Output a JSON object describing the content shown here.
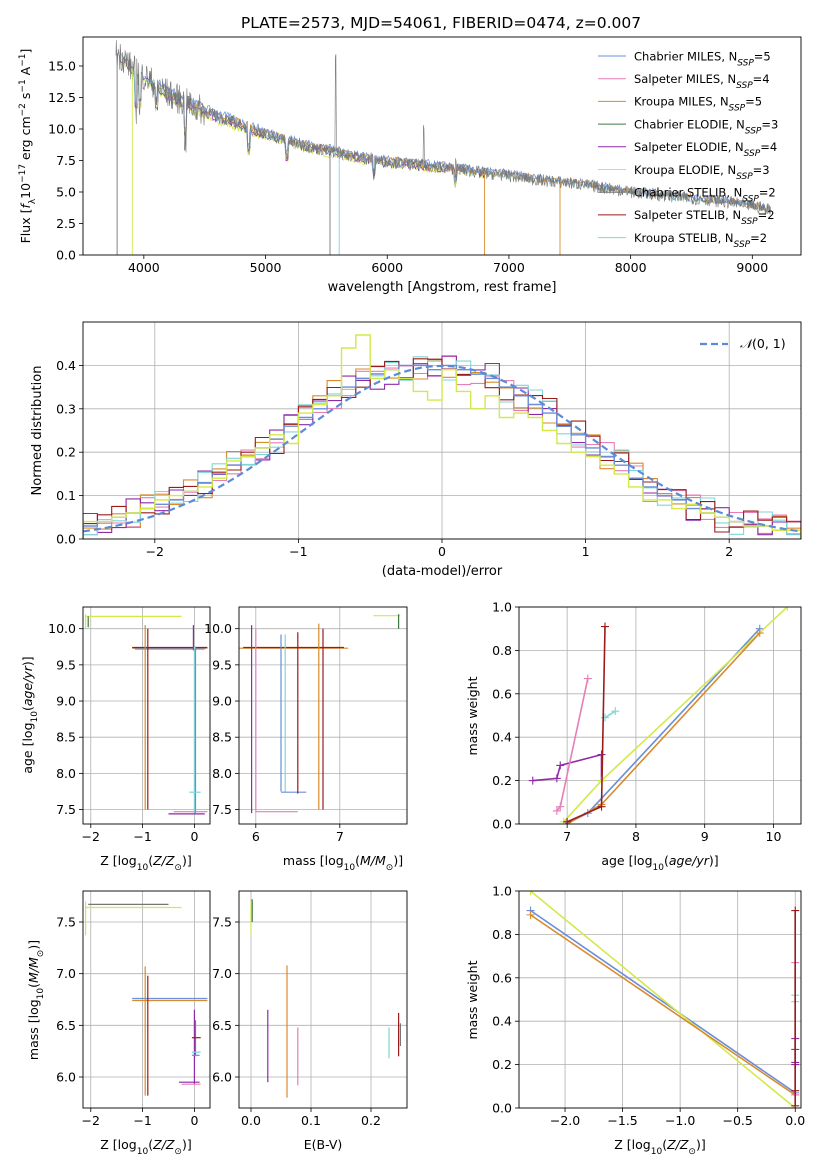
{
  "title": "PLATE=2573, MJD=54061, FIBERID=0474, z=0.007",
  "colors": {
    "Chabrier MILES": "#6a8fd8",
    "Salpeter MILES": "#e67fb6",
    "Kroupa MILES": "#d98a2c",
    "Chabrier ELODIE": "#3d7a3d",
    "Salpeter ELODIE": "#8e2aa8",
    "Kroupa ELODIE": "#d4e84a",
    "Chabrier STELIB": "#777777",
    "Salpeter STELIB": "#9b1b1b",
    "Kroupa STELIB": "#7fd6d9",
    "normal": "#5b8bd8"
  },
  "chart_data": [
    {
      "type": "line",
      "xlabel": "wavelength [Angstrom, rest frame]",
      "ylabel": "Flux [f$_\\lambda$10$^{-17}$ erg cm$^{-2}$ s$^{-1}$ A$^{-1}$]",
      "xlim": [
        3500,
        9400
      ],
      "ylim": [
        0,
        17.3
      ],
      "xticks": [
        4000,
        5000,
        6000,
        7000,
        8000,
        9000
      ],
      "yticks": [
        0.0,
        2.5,
        5.0,
        7.5,
        10.0,
        12.5,
        15.0
      ],
      "legend": [
        "Chabrier MILES, N_SSP=5",
        "Salpeter MILES, N_SSP=4",
        "Kroupa MILES, N_SSP=5",
        "Chabrier ELODIE, N_SSP=3",
        "Salpeter ELODIE, N_SSP=4",
        "Kroupa ELODIE, N_SSP=3",
        "Chabrier STELIB, N_SSP=2",
        "Salpeter STELIB, N_SSP=2",
        "Kroupa STELIB, N_SSP=2"
      ],
      "legend_position": "top-right",
      "series": [
        {
          "name": "data",
          "x": [
            3780,
            3850,
            3900,
            4000,
            4100,
            4200,
            4400,
            4600,
            4800,
            5000,
            5200,
            5400,
            5600,
            5800,
            6000,
            6200,
            6400,
            6600,
            6800,
            7000,
            7200,
            7400,
            7600,
            7800,
            8000,
            8200,
            8400,
            8600,
            8800,
            9000,
            9100
          ],
          "y": [
            16.0,
            15.5,
            14.8,
            14.2,
            13.5,
            12.8,
            11.8,
            11.0,
            10.3,
            9.6,
            9.0,
            8.5,
            8.1,
            7.7,
            7.4,
            7.2,
            7.0,
            6.8,
            6.5,
            6.3,
            6.0,
            5.8,
            5.6,
            5.3,
            5.0,
            4.8,
            4.6,
            4.4,
            4.2,
            3.9,
            3.7
          ]
        }
      ]
    },
    {
      "type": "bar",
      "xlabel": "(data-model)/error",
      "ylabel": "Normed distribution",
      "xlim": [
        -2.5,
        2.5
      ],
      "ylim": [
        0,
        0.5
      ],
      "xticks": [
        -2,
        -1,
        0,
        1,
        2
      ],
      "yticks": [
        0.0,
        0.1,
        0.2,
        0.3,
        0.4
      ],
      "legend": [
        "$\\mathcal{N}(0,1)$"
      ],
      "legend_position": "top-right",
      "bin_edges": [
        -2.5,
        -2.4,
        -2.3,
        -2.2,
        -2.1,
        -2.0,
        -1.9,
        -1.8,
        -1.7,
        -1.6,
        -1.5,
        -1.4,
        -1.3,
        -1.2,
        -1.1,
        -1.0,
        -0.9,
        -0.8,
        -0.7,
        -0.6,
        -0.5,
        -0.4,
        -0.3,
        -0.2,
        -0.1,
        0.0,
        0.1,
        0.2,
        0.3,
        0.4,
        0.5,
        0.6,
        0.7,
        0.8,
        0.9,
        1.0,
        1.1,
        1.2,
        1.3,
        1.4,
        1.5,
        1.6,
        1.7,
        1.8,
        1.9,
        2.0,
        2.1,
        2.2,
        2.3,
        2.4,
        2.5
      ],
      "series": [
        {
          "name": "Chabrier MILES",
          "values": [
            0.03,
            0.04,
            0.05,
            0.06,
            0.07,
            0.08,
            0.09,
            0.11,
            0.13,
            0.15,
            0.17,
            0.19,
            0.21,
            0.23,
            0.26,
            0.28,
            0.3,
            0.33,
            0.35,
            0.37,
            0.38,
            0.39,
            0.4,
            0.4,
            0.39,
            0.4,
            0.39,
            0.38,
            0.37,
            0.35,
            0.33,
            0.31,
            0.29,
            0.26,
            0.24,
            0.21,
            0.19,
            0.17,
            0.14,
            0.12,
            0.1,
            0.09,
            0.07,
            0.06,
            0.05,
            0.04,
            0.03,
            0.03,
            0.02,
            0.02
          ]
        },
        {
          "name": "Kroupa ELODIE",
          "values": [
            0.04,
            0.04,
            0.05,
            0.06,
            0.07,
            0.09,
            0.1,
            0.11,
            0.12,
            0.14,
            0.18,
            0.19,
            0.21,
            0.24,
            0.22,
            0.29,
            0.31,
            0.33,
            0.44,
            0.47,
            0.37,
            0.39,
            0.37,
            0.34,
            0.32,
            0.39,
            0.34,
            0.3,
            0.33,
            0.28,
            0.29,
            0.28,
            0.25,
            0.22,
            0.2,
            0.19,
            0.17,
            0.15,
            0.12,
            0.09,
            0.09,
            0.07,
            0.08,
            0.06,
            0.05,
            0.04,
            0.03,
            0.03,
            0.02,
            0.02
          ]
        }
      ],
      "curve": {
        "name": "$\\mathcal{N}(0,1)$",
        "mu": 0,
        "sigma": 1,
        "style": "dashed"
      }
    },
    {
      "type": "scatter",
      "xlabel": "Z [log$_{10}$($Z/Z_\\odot$)]",
      "ylabel": "age  [log$_{10}$($age/yr$)]",
      "xlim": [
        -2.15,
        0.3
      ],
      "ylim": [
        7.3,
        10.3
      ],
      "xticks": [
        -2,
        -1,
        0
      ],
      "yticks": [
        7.5,
        8.0,
        8.5,
        9.0,
        9.5,
        10.0
      ]
    },
    {
      "type": "scatter",
      "xlabel": "mass [log$_{10}$($M/M_\\odot$)]",
      "ylabel": "",
      "xlim": [
        5.8,
        7.8
      ],
      "ylim": [
        7.3,
        10.3
      ],
      "xticks": [
        6,
        7
      ],
      "yticks": [
        7.5,
        8.0,
        8.5,
        9.0,
        9.5,
        10.0
      ]
    },
    {
      "type": "line",
      "xlabel": "age  [log$_{10}$($age/yr$)]",
      "ylabel": "mass weight",
      "xlim": [
        6.3,
        10.4
      ],
      "ylim": [
        0,
        1.0
      ],
      "xticks": [
        7,
        8,
        9,
        10
      ],
      "yticks": [
        0.0,
        0.2,
        0.4,
        0.6,
        0.8,
        1.0
      ]
    },
    {
      "type": "scatter",
      "xlabel": "Z [log$_{10}$($Z/Z_\\odot$)]",
      "ylabel": "mass [log$_{10}$($M/M_\\odot$)]",
      "xlim": [
        -2.15,
        0.3
      ],
      "ylim": [
        5.7,
        7.8
      ],
      "xticks": [
        -2,
        -1,
        0
      ],
      "yticks": [
        6.0,
        6.5,
        7.0,
        7.5
      ]
    },
    {
      "type": "scatter",
      "xlabel": "E(B-V)",
      "ylabel": "",
      "xlim": [
        -0.02,
        0.26
      ],
      "ylim": [
        5.7,
        7.8
      ],
      "xticks": [
        0.0,
        0.1,
        0.2
      ],
      "yticks": [
        6.0,
        6.5,
        7.0,
        7.5
      ]
    },
    {
      "type": "line",
      "xlabel": "Z [log$_{10}$($Z/Z_\\odot$)]",
      "ylabel": "mass weight",
      "xlim": [
        -2.4,
        0.05
      ],
      "ylim": [
        0,
        1.0
      ],
      "xticks": [
        -2.0,
        -1.5,
        -1.0,
        -0.5,
        0.0
      ],
      "yticks": [
        0.0,
        0.2,
        0.4,
        0.6,
        0.8,
        1.0
      ]
    }
  ]
}
